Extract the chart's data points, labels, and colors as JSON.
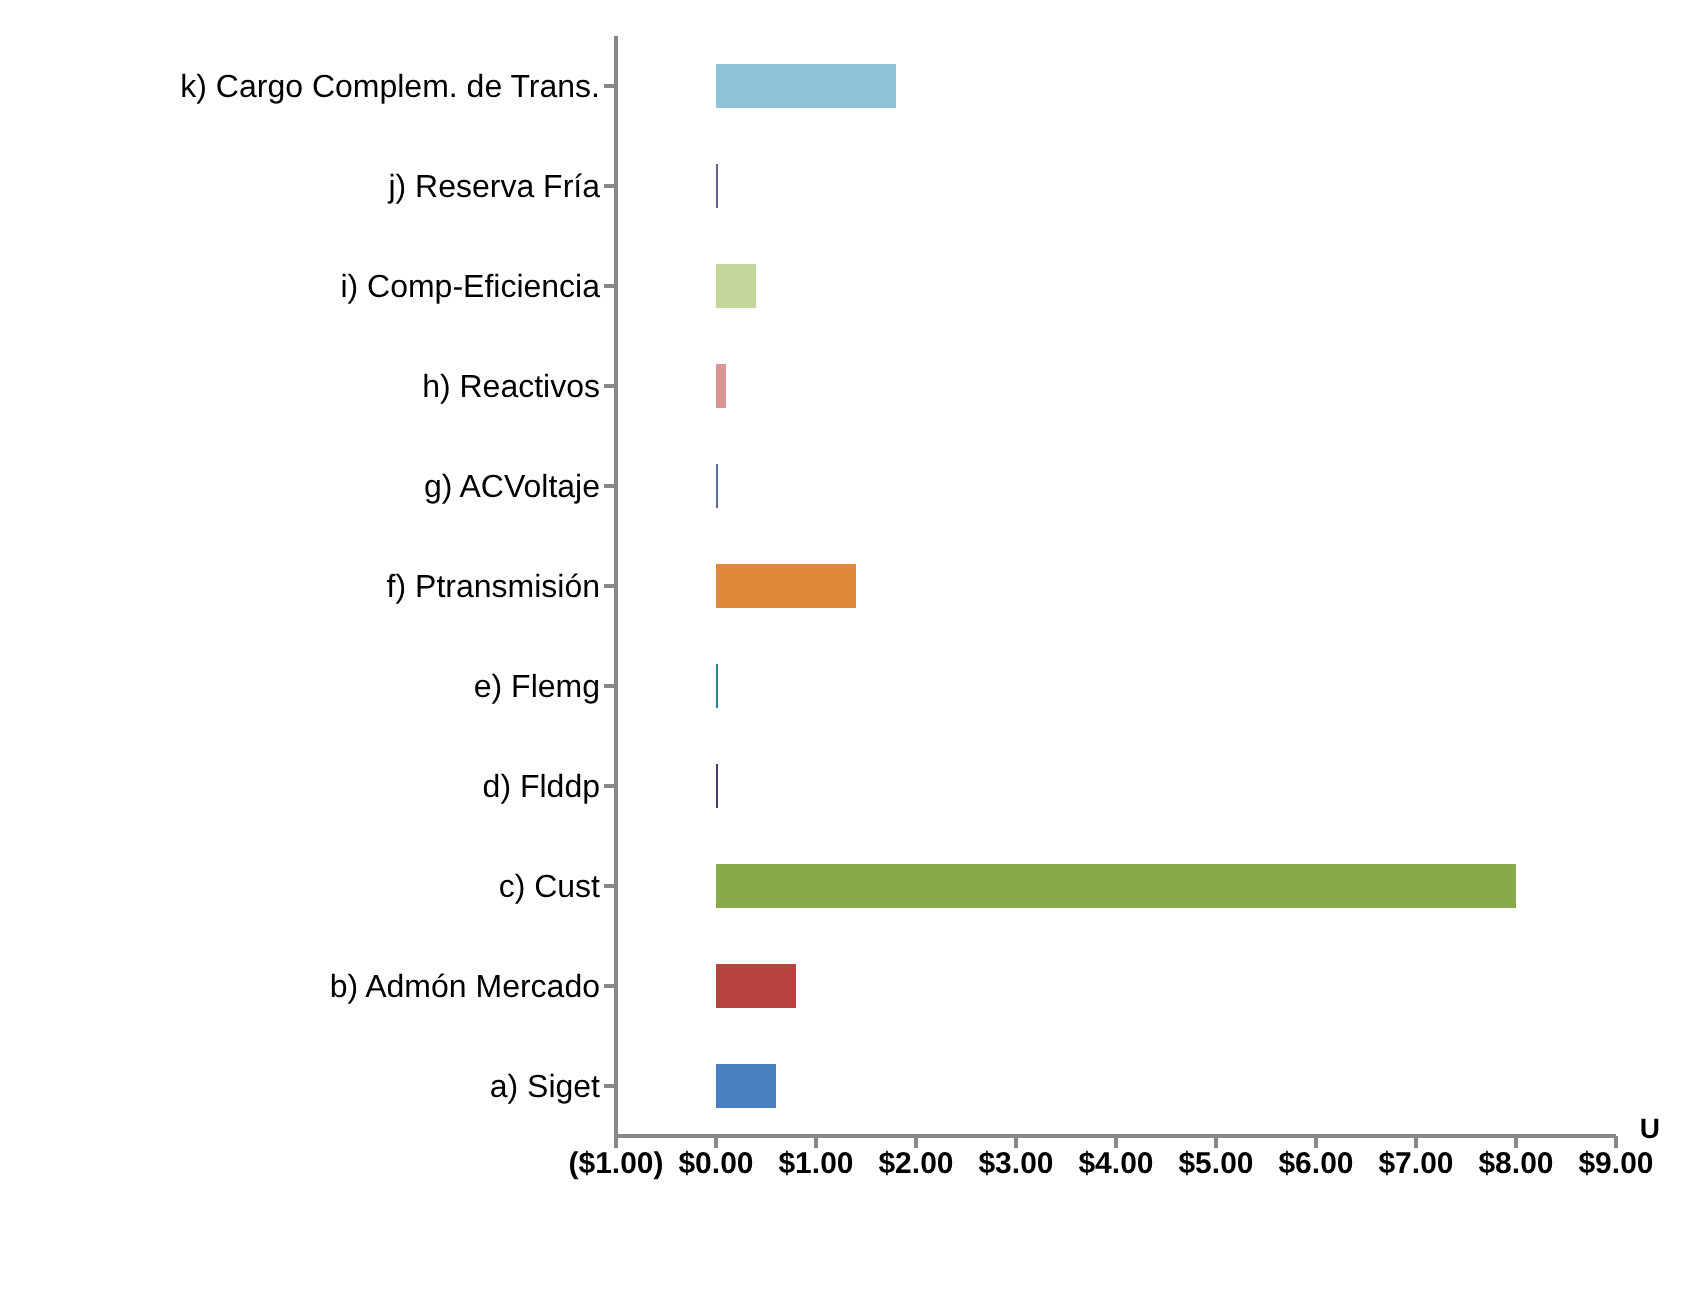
{
  "chart_data": {
    "type": "bar",
    "orientation": "horizontal",
    "categories": [
      "k) Cargo Complem. de Trans.",
      "j) Reserva Fría",
      "i) Comp-Eficiencia",
      "h) Reactivos",
      "g) ACVoltaje",
      "f) Ptransmisión",
      "e) Flemg",
      "d) Flddp",
      "c) Cust",
      "b) Admón Mercado",
      "a) Siget"
    ],
    "values": [
      1.8,
      0.02,
      0.4,
      0.1,
      0.02,
      1.4,
      0.02,
      0.02,
      8.0,
      0.8,
      0.6
    ],
    "colors": [
      "#8fc3d9",
      "#6e5d8c",
      "#c3d69b",
      "#d99694",
      "#5a6e99",
      "#e0883a",
      "#2e7f8f",
      "#4b3a6b",
      "#86a94a",
      "#b9433f",
      "#4a7fc0"
    ],
    "xlim": [
      -1,
      9
    ],
    "xticks": [
      {
        "value": -1,
        "label": "($1.00)"
      },
      {
        "value": 0,
        "label": "$0.00"
      },
      {
        "value": 1,
        "label": "$1.00"
      },
      {
        "value": 2,
        "label": "$2.00"
      },
      {
        "value": 3,
        "label": "$3.00"
      },
      {
        "value": 4,
        "label": "$4.00"
      },
      {
        "value": 5,
        "label": "$5.00"
      },
      {
        "value": 6,
        "label": "$6.00"
      },
      {
        "value": 7,
        "label": "$7.00"
      },
      {
        "value": 8,
        "label": "$8.00"
      },
      {
        "value": 9,
        "label": "$9.00"
      }
    ],
    "annotations": [
      "U"
    ],
    "grid": false,
    "legend": false
  }
}
